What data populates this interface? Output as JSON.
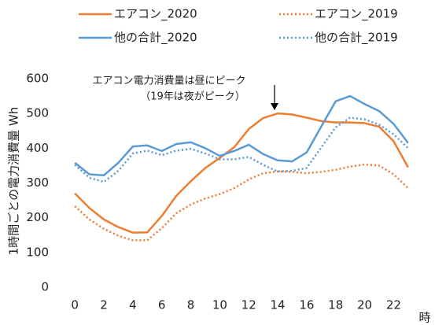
{
  "chart_data": {
    "type": "line",
    "x": [
      0,
      1,
      2,
      3,
      4,
      5,
      6,
      7,
      8,
      9,
      10,
      11,
      12,
      13,
      14,
      15,
      16,
      17,
      18,
      19,
      20,
      21,
      22,
      23
    ],
    "series": [
      {
        "name": "エアコン_2020",
        "color": "#ed7d31",
        "dash": false,
        "values": [
          270,
          228,
          195,
          173,
          157,
          158,
          205,
          263,
          305,
          343,
          372,
          403,
          455,
          487,
          500,
          497,
          488,
          478,
          474,
          474,
          472,
          462,
          420,
          345
        ]
      },
      {
        "name": "エアコン_2019",
        "color": "#ed7d31",
        "dash": true,
        "values": [
          233,
          195,
          168,
          148,
          135,
          135,
          170,
          213,
          238,
          255,
          268,
          285,
          310,
          328,
          333,
          332,
          328,
          332,
          338,
          347,
          353,
          350,
          325,
          285
        ]
      },
      {
        "name": "他の合計_2020",
        "color": "#5b9bd5",
        "dash": false,
        "values": [
          358,
          325,
          322,
          358,
          405,
          408,
          392,
          412,
          417,
          400,
          378,
          392,
          410,
          383,
          365,
          362,
          388,
          462,
          535,
          550,
          527,
          507,
          470,
          415
        ]
      },
      {
        "name": "他の合計_2019",
        "color": "#5b9bd5",
        "dash": true,
        "values": [
          352,
          315,
          303,
          335,
          385,
          393,
          380,
          393,
          398,
          385,
          368,
          368,
          375,
          352,
          333,
          335,
          343,
          402,
          460,
          488,
          483,
          468,
          440,
          400
        ]
      }
    ],
    "xlim": [
      -0.5,
      23.5
    ],
    "xticks": [
      0,
      2,
      4,
      6,
      8,
      10,
      12,
      14,
      16,
      18,
      20,
      22
    ],
    "ylim": [
      0,
      600
    ],
    "yticks": [
      0,
      100,
      200,
      300,
      400,
      500,
      600
    ],
    "xlabel": "時",
    "ylabel": "1時間ごとの電力消費量 Wh",
    "annotation": [
      "エアコン電力消費量は昼にピーク",
      "（19年は夜がピーク）"
    ],
    "grid": false
  }
}
